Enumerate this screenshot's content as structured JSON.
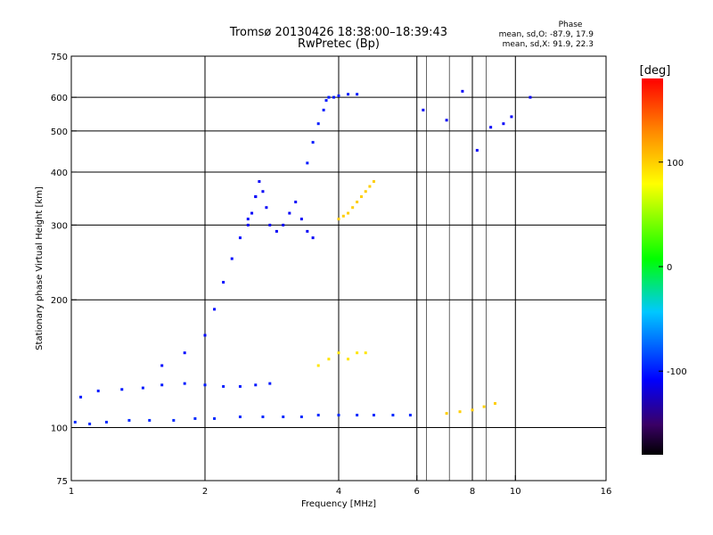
{
  "chart_data": {
    "type": "scatter",
    "title": "Tromsø 20130426 18:38:00–18:39:43",
    "subtitle": "RwPretec (Bp)",
    "xlabel": "Frequency [MHz]",
    "ylabel": "Stationary phase Virtual Height [km]",
    "x_scale": "log",
    "y_scale": "log",
    "xlim": [
      1,
      16
    ],
    "ylim": [
      75,
      750
    ],
    "x_ticks": [
      1,
      2,
      4,
      6,
      8,
      10,
      16
    ],
    "x_tick_labels": [
      "1",
      "2",
      "4",
      "6",
      "8",
      "10",
      "16"
    ],
    "x_grid": [
      2,
      4,
      6,
      8,
      10
    ],
    "x_minor_grid": [
      6.3,
      7.1,
      8.6
    ],
    "y_ticks": [
      75,
      100,
      200,
      300,
      400,
      500,
      600,
      750
    ],
    "y_tick_labels": [
      "75",
      "100",
      "200",
      "300",
      "400",
      "500",
      "600",
      "750"
    ],
    "y_grid": [
      100,
      200,
      300,
      400,
      500,
      600
    ],
    "grid": true,
    "stats": {
      "heading": "Phase",
      "lines": [
        "mean, sd,O: -87.9, 17.9",
        "mean, sd,X:  91.9, 22.3"
      ]
    },
    "colorbar": {
      "label": "[deg]",
      "range": [
        -180,
        180
      ],
      "ticks": [
        -100,
        0,
        100
      ],
      "tick_labels": [
        "-100",
        "0",
        "100"
      ],
      "colormap": "rainbow"
    },
    "series": [
      {
        "name": "",
        "x": [
          1.02,
          1.1,
          1.2,
          1.35,
          1.5,
          1.7,
          1.9,
          2.1,
          2.4,
          2.7,
          3.0,
          3.3,
          3.6,
          4.0,
          4.4,
          4.8,
          5.3,
          5.8
        ],
        "y": [
          103,
          102,
          103,
          104,
          104,
          104,
          105,
          105,
          106,
          106,
          106,
          106,
          107,
          107,
          107,
          107,
          107,
          107
        ],
        "phase": -95
      },
      {
        "name": "",
        "x": [
          1.05,
          1.15,
          1.3,
          1.45,
          1.6,
          1.8,
          2.0,
          2.2,
          2.4,
          2.6,
          2.8
        ],
        "y": [
          118,
          122,
          123,
          124,
          126,
          127,
          126,
          125,
          125,
          126,
          127
        ],
        "phase": -100
      },
      {
        "name": "",
        "x": [
          1.6,
          1.8,
          2.0,
          2.1,
          2.2,
          2.3,
          2.4,
          2.5,
          2.6
        ],
        "y": [
          140,
          150,
          165,
          190,
          220,
          250,
          280,
          310,
          350
        ],
        "phase": -105
      },
      {
        "name": "",
        "x": [
          2.5,
          2.55,
          2.6,
          2.65,
          2.7,
          2.75,
          2.8,
          2.9,
          3.0,
          3.1,
          3.2,
          3.3,
          3.4,
          3.5
        ],
        "y": [
          300,
          320,
          350,
          380,
          360,
          330,
          300,
          290,
          300,
          320,
          340,
          310,
          290,
          280
        ],
        "phase": -110
      },
      {
        "name": "",
        "x": [
          3.4,
          3.5,
          3.6,
          3.7,
          3.75,
          3.8,
          3.9,
          4.0,
          4.2,
          4.4
        ],
        "y": [
          420,
          470,
          520,
          560,
          590,
          600,
          600,
          605,
          610,
          610
        ],
        "phase": -100
      },
      {
        "name": "",
        "x": [
          4.0,
          4.1,
          4.2,
          4.3,
          4.4,
          4.5,
          4.6,
          4.7,
          4.8
        ],
        "y": [
          310,
          315,
          320,
          330,
          340,
          350,
          360,
          370,
          380
        ],
        "phase": 100
      },
      {
        "name": "",
        "x": [
          3.6,
          3.8,
          4.0,
          4.2,
          4.4,
          4.6
        ],
        "y": [
          140,
          145,
          150,
          145,
          150,
          150
        ],
        "phase": 90
      },
      {
        "name": "",
        "x": [
          7.0,
          7.5,
          8.0,
          8.5,
          9.0
        ],
        "y": [
          108,
          109,
          110,
          112,
          114
        ],
        "phase": 100
      },
      {
        "name": "",
        "x": [
          6.2,
          7.0,
          7.6,
          8.2,
          8.8,
          9.4,
          9.8,
          10.8
        ],
        "y": [
          560,
          530,
          620,
          450,
          510,
          520,
          540,
          600
        ],
        "phase": -110
      }
    ]
  }
}
